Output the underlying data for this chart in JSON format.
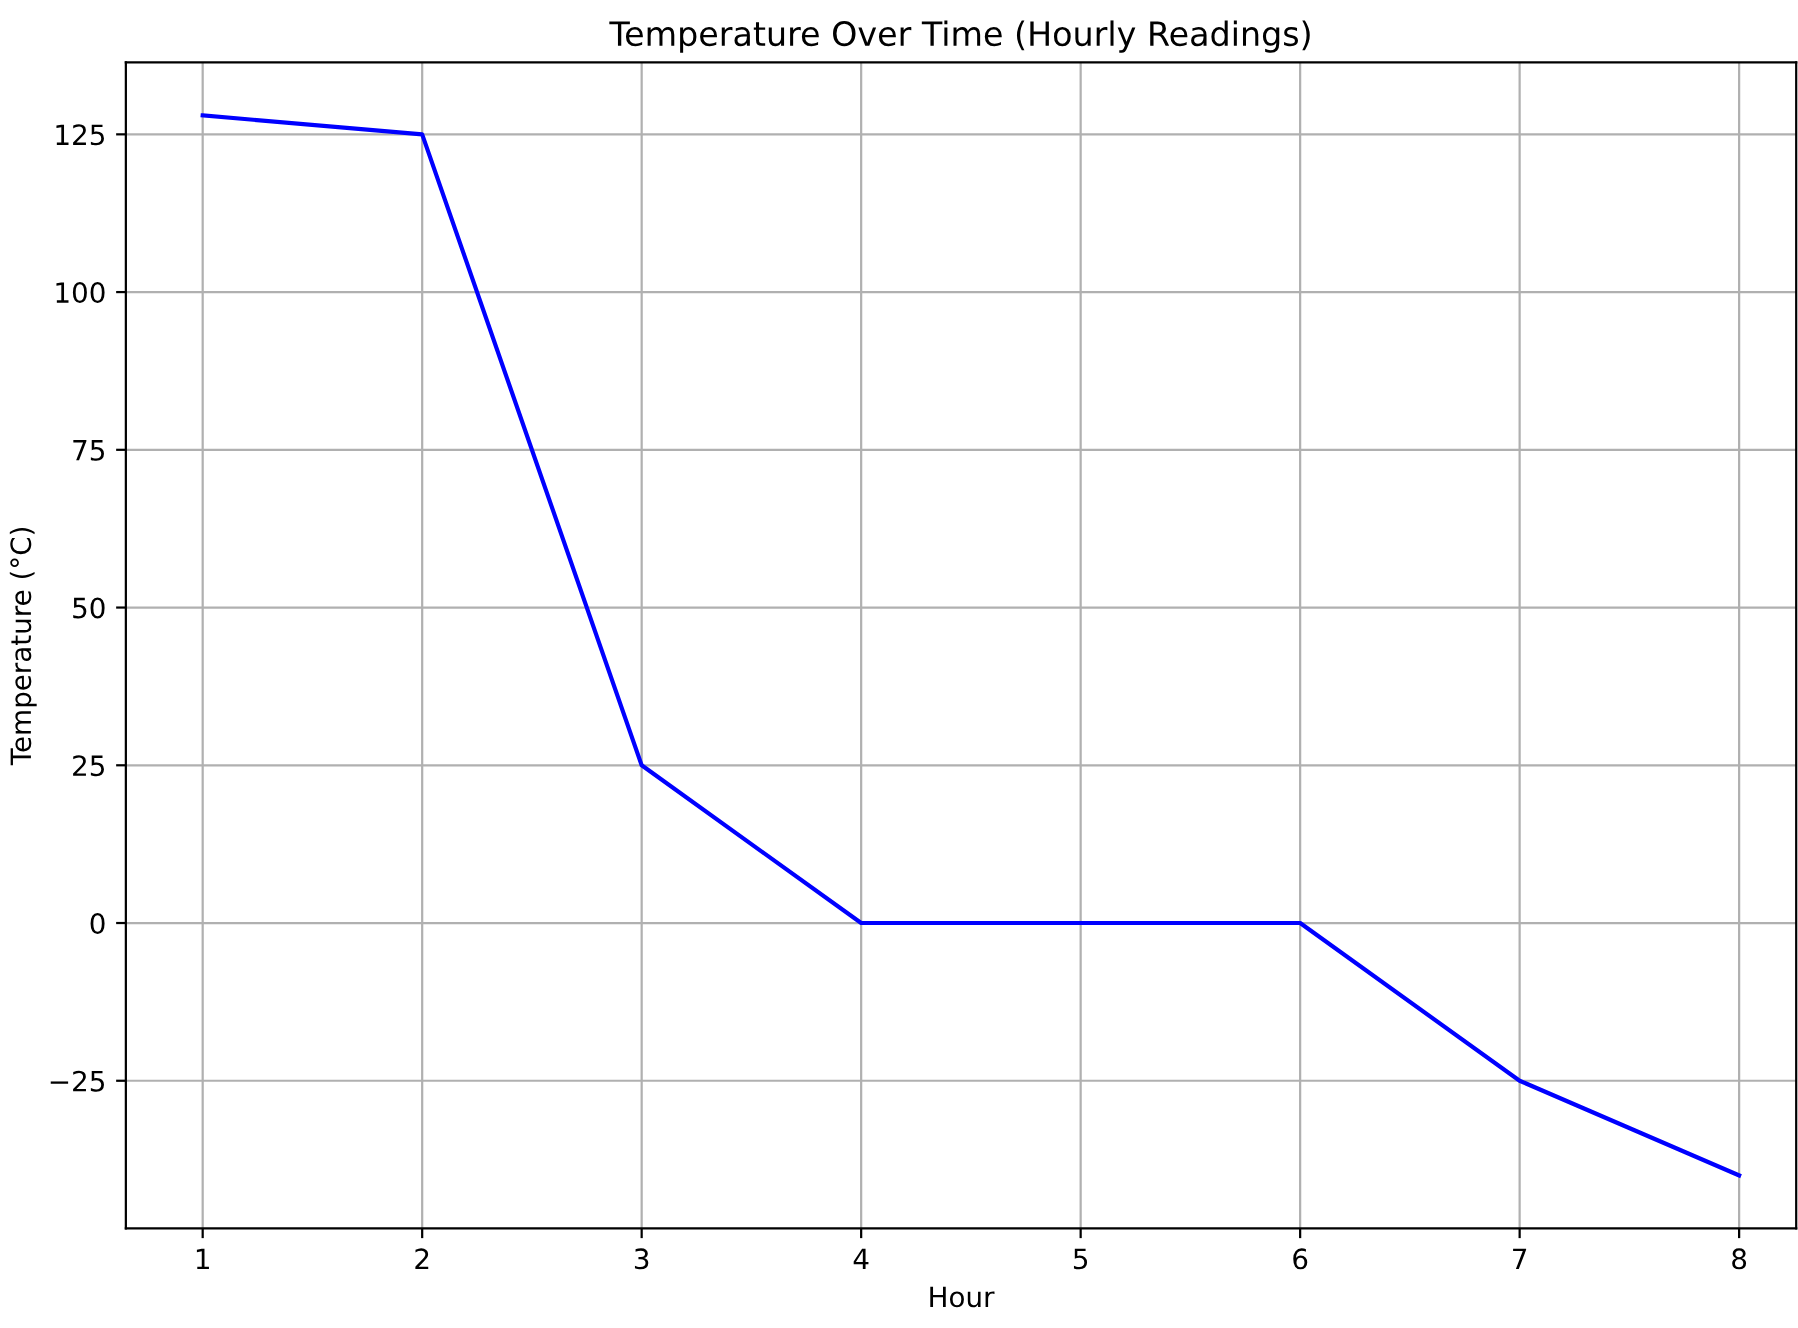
{
  "chart_data": {
    "type": "line",
    "title": "Temperature Over Time (Hourly Readings)",
    "xlabel": "Hour",
    "ylabel": "Temperature (°C)",
    "x": [
      1,
      2,
      3,
      4,
      5,
      6,
      7,
      8
    ],
    "series": [
      {
        "color": "#0000ff",
        "values": [
          128,
          125,
          25,
          0,
          0,
          0,
          -25,
          -40
        ]
      }
    ],
    "xlim": [
      0.65,
      8.26
    ],
    "ylim": [
      -48.4,
      136.4
    ],
    "xticks": [
      1,
      2,
      3,
      4,
      5,
      6,
      7,
      8
    ],
    "yticks": [
      {
        "value": -25,
        "label": "−25"
      },
      0,
      25,
      50,
      75,
      100,
      125
    ],
    "grid": true,
    "marker": "none",
    "line_style": "solid",
    "legend": false
  }
}
